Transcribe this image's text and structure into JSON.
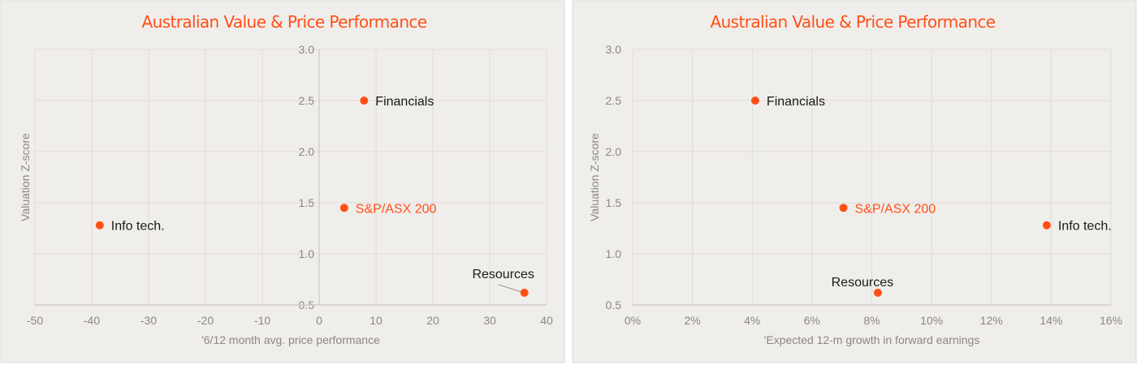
{
  "colors": {
    "background": "#f0eeeb",
    "accent": "#ff4f17",
    "grid": "#dedbd8",
    "text": "#1a1a1a",
    "axis_text": "#8a8784"
  },
  "chart_data": [
    {
      "type": "scatter",
      "title": "Australian Value & Price Performance",
      "xlabel": "'6/12 month avg. price performance",
      "ylabel": "Valuation Z-score",
      "xlim": [
        -50,
        40
      ],
      "ylim": [
        0.5,
        3.0
      ],
      "x_ticks": [
        "-50",
        "-40",
        "-30",
        "-20",
        "-10",
        "0",
        "10",
        "20",
        "30",
        "40"
      ],
      "y_ticks": [
        "0.5",
        "1.0",
        "1.5",
        "2.0",
        "2.5",
        "3.0"
      ],
      "grid": true,
      "points": [
        {
          "label": "Financials",
          "x": 7.9,
          "y": 2.5,
          "highlight": false
        },
        {
          "label": "S&P/ASX 200",
          "x": 4.4,
          "y": 1.45,
          "highlight": true
        },
        {
          "label": "Info tech.",
          "x": -38.6,
          "y": 1.28,
          "highlight": false
        },
        {
          "label": "Resources",
          "x": 36.1,
          "y": 0.62,
          "highlight": false
        }
      ]
    },
    {
      "type": "scatter",
      "title": "Australian Value & Price Performance",
      "xlabel": "'Expected 12-m growth in forward earnings",
      "ylabel": "Valuation Z-score",
      "xlim": [
        0,
        16
      ],
      "ylim": [
        0.5,
        3.0
      ],
      "x_ticks": [
        "0%",
        "2%",
        "4%",
        "6%",
        "8%",
        "10%",
        "12%",
        "14%",
        "16%"
      ],
      "y_ticks": [
        "0.5",
        "1.0",
        "1.5",
        "2.0",
        "2.5",
        "3.0"
      ],
      "grid": true,
      "points": [
        {
          "label": "Financials",
          "x": 4.1,
          "y": 2.5,
          "highlight": false
        },
        {
          "label": "S&P/ASX 200",
          "x": 7.05,
          "y": 1.45,
          "highlight": true
        },
        {
          "label": "Info tech.",
          "x": 13.85,
          "y": 1.28,
          "highlight": false
        },
        {
          "label": "Resources",
          "x": 8.2,
          "y": 0.62,
          "highlight": false
        }
      ]
    }
  ]
}
